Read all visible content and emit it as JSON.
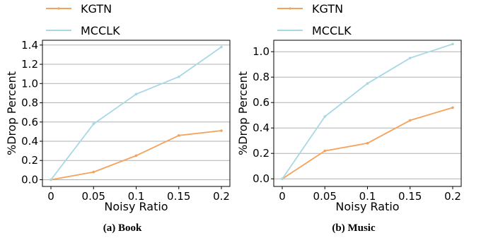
{
  "chart_data": [
    {
      "type": "line",
      "caption": "(a) Book",
      "xlabel": "Noisy Ratio",
      "ylabel": "%Drop Percent",
      "categories": [
        "0",
        "0.05",
        "0.1",
        "0.15",
        "0.2"
      ],
      "ylim": [
        -0.07,
        1.45
      ],
      "yticks": [
        "0.0",
        "0.2",
        "0.4",
        "0.6",
        "0.8",
        "1.0",
        "1.2",
        "1.4"
      ],
      "ytick_values": [
        0,
        0.2,
        0.4,
        0.6,
        0.8,
        1.0,
        1.2,
        1.4
      ],
      "grid": "horizontal",
      "legend_position": "above",
      "series": [
        {
          "name": "KGTN",
          "color": "#f5a25c",
          "values": [
            0.0,
            0.08,
            0.25,
            0.46,
            0.51
          ]
        },
        {
          "name": "MCCLK",
          "color": "#a8d8e6",
          "values": [
            0.0,
            0.58,
            0.89,
            1.07,
            1.38
          ]
        }
      ]
    },
    {
      "type": "line",
      "caption": "(b) Music",
      "xlabel": "Noisy Ratio",
      "ylabel": "%Drop Percent",
      "categories": [
        "0",
        "0.05",
        "0.1",
        "0.15",
        "0.2"
      ],
      "ylim": [
        -0.06,
        1.09
      ],
      "yticks": [
        "0.0",
        "0.2",
        "0.4",
        "0.6",
        "0.8",
        "1.0"
      ],
      "ytick_values": [
        0,
        0.2,
        0.4,
        0.6,
        0.8,
        1.0
      ],
      "grid": "horizontal",
      "legend_position": "above",
      "series": [
        {
          "name": "KGTN",
          "color": "#f5a25c",
          "values": [
            0.0,
            0.22,
            0.28,
            0.46,
            0.56
          ]
        },
        {
          "name": "MCCLK",
          "color": "#a8d8e6",
          "values": [
            0.0,
            0.49,
            0.75,
            0.95,
            1.06
          ]
        }
      ]
    }
  ]
}
